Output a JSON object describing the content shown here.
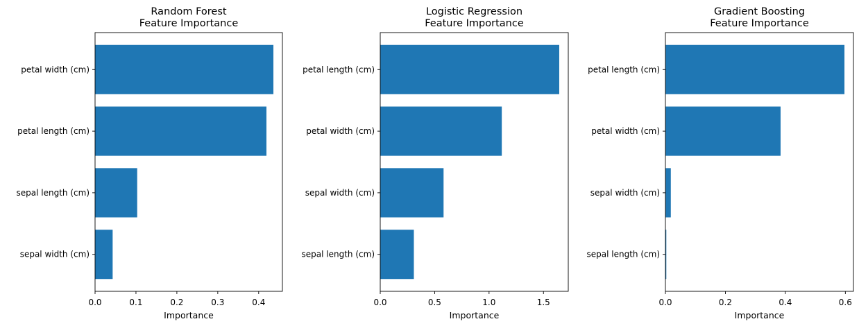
{
  "chart_data": [
    {
      "type": "bar",
      "orientation": "horizontal",
      "title": "Random Forest\nFeature Importance",
      "xlabel": "Importance",
      "ylabel": "",
      "categories": [
        "petal width (cm)",
        "petal length (cm)",
        "sepal length (cm)",
        "sepal width (cm)"
      ],
      "values": [
        0.436,
        0.419,
        0.103,
        0.043
      ],
      "xlim": [
        0,
        0.458
      ],
      "xticks": [
        0.0,
        0.1,
        0.2,
        0.3,
        0.4
      ],
      "xtick_labels": [
        "0.0",
        "0.1",
        "0.2",
        "0.3",
        "0.4"
      ],
      "bar_color": "#1f77b4",
      "grid": false
    },
    {
      "type": "bar",
      "orientation": "horizontal",
      "title": "Logistic Regression\nFeature Importance",
      "xlabel": "Importance",
      "ylabel": "",
      "categories": [
        "petal length (cm)",
        "petal width (cm)",
        "sepal width (cm)",
        "sepal length (cm)"
      ],
      "values": [
        1.645,
        1.117,
        0.582,
        0.309
      ],
      "xlim": [
        0,
        1.728
      ],
      "xticks": [
        0.0,
        0.5,
        1.0,
        1.5
      ],
      "xtick_labels": [
        "0.0",
        "0.5",
        "1.0",
        "1.5"
      ],
      "bar_color": "#1f77b4",
      "grid": false
    },
    {
      "type": "bar",
      "orientation": "horizontal",
      "title": "Gradient Boosting\nFeature Importance",
      "xlabel": "Importance",
      "ylabel": "",
      "categories": [
        "petal length (cm)",
        "petal width (cm)",
        "sepal width (cm)",
        "sepal length (cm)"
      ],
      "values": [
        0.597,
        0.384,
        0.018,
        0.003
      ],
      "xlim": [
        0,
        0.627
      ],
      "xticks": [
        0.0,
        0.2,
        0.4,
        0.6
      ],
      "xtick_labels": [
        "0.0",
        "0.2",
        "0.4",
        "0.6"
      ],
      "bar_color": "#1f77b4",
      "grid": false
    }
  ]
}
